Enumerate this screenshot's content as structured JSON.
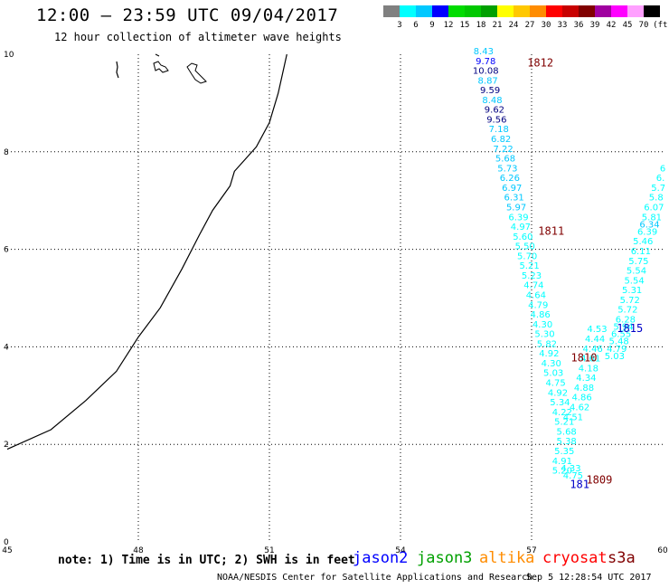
{
  "header": {
    "title": "12:00 – 23:59 UTC 09/04/2017",
    "subtitle": "12 hour collection of altimeter wave heights"
  },
  "legend": {
    "unit_label": "(ft)",
    "colors": [
      "#808080",
      "#00ffff",
      "#00c8ff",
      "#0000ff",
      "#00dc00",
      "#00c800",
      "#00a000",
      "#ffff00",
      "#ffc800",
      "#ff8c00",
      "#ff0000",
      "#c80000",
      "#800000",
      "#a000a0",
      "#ff00ff",
      "#ffa0ff",
      "#000000"
    ],
    "labels": [
      "3",
      "6",
      "9",
      "12",
      "15",
      "18",
      "21",
      "24",
      "27",
      "30",
      "33",
      "36",
      "39",
      "42",
      "45",
      "70"
    ]
  },
  "map": {
    "x_ticks": [
      "45",
      "48",
      "51",
      "54",
      "57",
      "60"
    ],
    "y_ticks": [
      "0",
      "2",
      "4",
      "6",
      "8",
      "10"
    ],
    "x_range": [
      45,
      60
    ],
    "y_range": [
      0,
      10
    ]
  },
  "tracks": [
    {
      "id": "1812",
      "label": "1812",
      "label_color": "#800000",
      "lon": 57.2,
      "lat": 9.75,
      "points": [
        {
          "v": "8.43",
          "lon": 55.9,
          "lat": 10.0,
          "c": "#00c8ff"
        },
        {
          "v": "9.78",
          "lon": 55.95,
          "lat": 9.8,
          "c": "#0000ff"
        },
        {
          "v": "10.08",
          "lon": 55.95,
          "lat": 9.6,
          "c": "#000080"
        },
        {
          "v": "8.87",
          "lon": 56.0,
          "lat": 9.4,
          "c": "#00c8ff"
        },
        {
          "v": "9.59",
          "lon": 56.05,
          "lat": 9.2,
          "c": "#000080"
        },
        {
          "v": "8.48",
          "lon": 56.1,
          "lat": 9.0,
          "c": "#00c8ff"
        },
        {
          "v": "9.62",
          "lon": 56.15,
          "lat": 8.8,
          "c": "#000080"
        },
        {
          "v": "9.56",
          "lon": 56.2,
          "lat": 8.6,
          "c": "#000080"
        },
        {
          "v": "7.18",
          "lon": 56.25,
          "lat": 8.4,
          "c": "#00c8ff"
        },
        {
          "v": "6.82",
          "lon": 56.3,
          "lat": 8.2,
          "c": "#00c8ff"
        },
        {
          "v": "7.22",
          "lon": 56.35,
          "lat": 8.0,
          "c": "#00c8ff"
        },
        {
          "v": "5.68",
          "lon": 56.4,
          "lat": 7.8,
          "c": "#00c8ff"
        },
        {
          "v": "5.73",
          "lon": 56.45,
          "lat": 7.6,
          "c": "#00c8ff"
        },
        {
          "v": "6.26",
          "lon": 56.5,
          "lat": 7.4,
          "c": "#00c8ff"
        },
        {
          "v": "6.97",
          "lon": 56.55,
          "lat": 7.2,
          "c": "#00c8ff"
        },
        {
          "v": "6.31",
          "lon": 56.6,
          "lat": 7.0,
          "c": "#00c8ff"
        },
        {
          "v": "5.97",
          "lon": 56.65,
          "lat": 6.8,
          "c": "#00c8ff"
        },
        {
          "v": "6.39",
          "lon": 56.7,
          "lat": 6.6,
          "c": "#00ffff"
        }
      ]
    },
    {
      "id": "1811",
      "label": "1811",
      "label_color": "#800000",
      "lon": 57.45,
      "lat": 6.3,
      "points": [
        {
          "v": "4.97",
          "lon": 56.75,
          "lat": 6.4,
          "c": "#00ffff"
        },
        {
          "v": "5.60",
          "lon": 56.8,
          "lat": 6.2,
          "c": "#00ffff"
        },
        {
          "v": "5.50",
          "lon": 56.85,
          "lat": 6.0,
          "c": "#00ffff"
        },
        {
          "v": "5.70",
          "lon": 56.9,
          "lat": 5.8,
          "c": "#00ffff"
        },
        {
          "v": "5.21",
          "lon": 56.95,
          "lat": 5.6,
          "c": "#00ffff"
        },
        {
          "v": "5.23",
          "lon": 57.0,
          "lat": 5.4,
          "c": "#00ffff"
        },
        {
          "v": "4.74",
          "lon": 57.05,
          "lat": 5.2,
          "c": "#00ffff"
        },
        {
          "v": "4.64",
          "lon": 57.1,
          "lat": 5.0,
          "c": "#00ffff"
        },
        {
          "v": "4.79",
          "lon": 57.15,
          "lat": 4.8,
          "c": "#00ffff"
        },
        {
          "v": "4.86",
          "lon": 57.2,
          "lat": 4.6,
          "c": "#00ffff"
        },
        {
          "v": "4.30",
          "lon": 57.25,
          "lat": 4.4,
          "c": "#00ffff"
        },
        {
          "v": "5.30",
          "lon": 57.3,
          "lat": 4.2,
          "c": "#00ffff"
        },
        {
          "v": "5.82",
          "lon": 57.35,
          "lat": 4.0,
          "c": "#00ffff"
        },
        {
          "v": "4.92",
          "lon": 57.4,
          "lat": 3.8,
          "c": "#00ffff"
        },
        {
          "v": "4.30",
          "lon": 57.45,
          "lat": 3.6,
          "c": "#00ffff"
        },
        {
          "v": "5.03",
          "lon": 57.5,
          "lat": 3.4,
          "c": "#00ffff"
        },
        {
          "v": "4.75",
          "lon": 57.55,
          "lat": 3.2,
          "c": "#00ffff"
        },
        {
          "v": "4.92",
          "lon": 57.6,
          "lat": 3.0,
          "c": "#00ffff"
        },
        {
          "v": "5.34",
          "lon": 57.65,
          "lat": 2.8,
          "c": "#00ffff"
        },
        {
          "v": "4.22",
          "lon": 57.7,
          "lat": 2.6,
          "c": "#00ffff"
        },
        {
          "v": "5.21",
          "lon": 57.75,
          "lat": 2.4,
          "c": "#00ffff"
        },
        {
          "v": "5.68",
          "lon": 57.8,
          "lat": 2.2,
          "c": "#00ffff"
        },
        {
          "v": "5.38",
          "lon": 57.8,
          "lat": 2.0,
          "c": "#00ffff"
        },
        {
          "v": "5.35",
          "lon": 57.75,
          "lat": 1.8,
          "c": "#00ffff"
        },
        {
          "v": "4.91",
          "lon": 57.7,
          "lat": 1.6,
          "c": "#00ffff"
        },
        {
          "v": "5.20",
          "lon": 57.7,
          "lat": 1.4,
          "c": "#00ffff"
        }
      ]
    },
    {
      "id": "1810",
      "label": "1810",
      "label_color": "#800000",
      "lon": 58.2,
      "lat": 3.7,
      "points": [
        {
          "v": "4.53",
          "lon": 58.5,
          "lat": 4.3,
          "c": "#00ffff"
        },
        {
          "v": "4.44",
          "lon": 58.45,
          "lat": 4.1,
          "c": "#00ffff"
        },
        {
          "v": "4.46",
          "lon": 58.4,
          "lat": 3.9,
          "c": "#00ffff"
        },
        {
          "v": "4.61",
          "lon": 58.35,
          "lat": 3.7,
          "c": "#00ffff"
        },
        {
          "v": "4.18",
          "lon": 58.3,
          "lat": 3.5,
          "c": "#00ffff"
        },
        {
          "v": "4.34",
          "lon": 58.25,
          "lat": 3.3,
          "c": "#00ffff"
        },
        {
          "v": "4.88",
          "lon": 58.2,
          "lat": 3.1,
          "c": "#00ffff"
        },
        {
          "v": "4.86",
          "lon": 58.15,
          "lat": 2.9,
          "c": "#00ffff"
        },
        {
          "v": "4.62",
          "lon": 58.1,
          "lat": 2.7,
          "c": "#00ffff"
        },
        {
          "v": "4.51",
          "lon": 57.95,
          "lat": 2.5,
          "c": "#00ffff"
        },
        {
          "v": "4.33",
          "lon": 57.9,
          "lat": 1.45,
          "c": "#00ffff"
        },
        {
          "v": "4.75",
          "lon": 57.95,
          "lat": 1.3,
          "c": "#00ffff"
        }
      ]
    },
    {
      "id": "1815",
      "label": "1815",
      "label_color": "#0000c8",
      "lon": 59.25,
      "lat": 4.3,
      "points": [
        {
          "v": "6",
          "lon": 60.0,
          "lat": 7.6,
          "c": "#00ffff"
        },
        {
          "v": "6.",
          "lon": 59.95,
          "lat": 7.4,
          "c": "#00ffff"
        },
        {
          "v": "5.7",
          "lon": 59.9,
          "lat": 7.2,
          "c": "#00ffff"
        },
        {
          "v": "5.8",
          "lon": 59.85,
          "lat": 7.0,
          "c": "#00ffff"
        },
        {
          "v": "6.07",
          "lon": 59.8,
          "lat": 6.8,
          "c": "#00ffff"
        },
        {
          "v": "5.81",
          "lon": 59.75,
          "lat": 6.6,
          "c": "#00ffff"
        },
        {
          "v": "6.34",
          "lon": 59.7,
          "lat": 6.45,
          "c": "#00c8ff"
        },
        {
          "v": "6.39",
          "lon": 59.65,
          "lat": 6.3,
          "c": "#00ffff"
        },
        {
          "v": "5.46",
          "lon": 59.55,
          "lat": 6.1,
          "c": "#00ffff"
        },
        {
          "v": "6.11",
          "lon": 59.5,
          "lat": 5.9,
          "c": "#00ffff"
        },
        {
          "v": "5.75",
          "lon": 59.45,
          "lat": 5.7,
          "c": "#00ffff"
        },
        {
          "v": "5.54",
          "lon": 59.4,
          "lat": 5.5,
          "c": "#00ffff"
        },
        {
          "v": "5.54",
          "lon": 59.35,
          "lat": 5.3,
          "c": "#00ffff"
        },
        {
          "v": "5.31",
          "lon": 59.3,
          "lat": 5.1,
          "c": "#00ffff"
        },
        {
          "v": "5.72",
          "lon": 59.25,
          "lat": 4.9,
          "c": "#00ffff"
        },
        {
          "v": "5.72",
          "lon": 59.2,
          "lat": 4.7,
          "c": "#00ffff"
        },
        {
          "v": "6.28",
          "lon": 59.15,
          "lat": 4.5,
          "c": "#00ffff"
        },
        {
          "v": "5.94",
          "lon": 59.1,
          "lat": 4.35,
          "c": "#00ffff"
        },
        {
          "v": "6.55",
          "lon": 59.05,
          "lat": 4.2,
          "c": "#00ffff"
        },
        {
          "v": "5.48",
          "lon": 59.0,
          "lat": 4.05,
          "c": "#00ffff"
        },
        {
          "v": "4.79",
          "lon": 58.95,
          "lat": 3.9,
          "c": "#00ffff"
        },
        {
          "v": "5.03",
          "lon": 58.9,
          "lat": 3.75,
          "c": "#00ffff"
        }
      ]
    },
    {
      "id": "1814",
      "label": "181",
      "label_color": "#0000c8",
      "lon": 58.1,
      "lat": 1.1,
      "points": []
    },
    {
      "id": "1809",
      "label": "1809",
      "label_color": "#800000",
      "lon": 58.55,
      "lat": 1.2,
      "points": []
    }
  ],
  "coastline": [
    [
      45.0,
      1.9
    ],
    [
      46.0,
      2.3
    ],
    [
      46.8,
      2.9
    ],
    [
      47.5,
      3.5
    ],
    [
      48.0,
      4.2
    ],
    [
      48.5,
      4.8
    ],
    [
      49.0,
      5.6
    ],
    [
      49.4,
      6.3
    ],
    [
      49.7,
      6.8
    ],
    [
      50.1,
      7.3
    ],
    [
      50.2,
      7.6
    ],
    [
      50.7,
      8.1
    ],
    [
      51.0,
      8.6
    ],
    [
      51.2,
      9.2
    ],
    [
      51.3,
      9.6
    ],
    [
      51.4,
      10.0
    ]
  ],
  "footer": {
    "note": "note: 1) Time is in UTC; 2) SWH is in feet",
    "satellites": [
      {
        "name": "jason2",
        "color": "#0000ff"
      },
      {
        "name": "jason3",
        "color": "#00a000"
      },
      {
        "name": "altika",
        "color": "#ff8c00"
      },
      {
        "name": "cryosat",
        "color": "#ff0000"
      },
      {
        "name": "s3a",
        "color": "#800000"
      }
    ],
    "credit": "NOAA/NESDIS Center for Satellite Applications and Research",
    "timestamp": "Sep  5 12:28:54 UTC 2017"
  }
}
